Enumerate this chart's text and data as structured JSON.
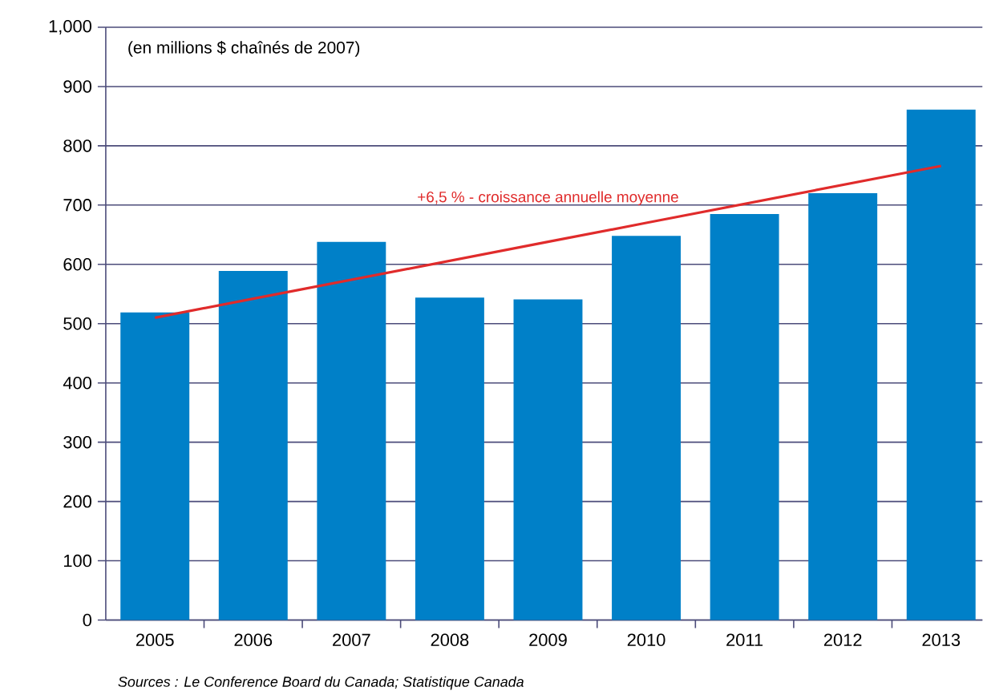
{
  "chart_data": {
    "type": "bar",
    "subtitle": "(en millions $ chaînés de 2007)",
    "categories": [
      "2005",
      "2006",
      "2007",
      "2008",
      "2009",
      "2010",
      "2011",
      "2012",
      "2013"
    ],
    "series": [
      {
        "color": "#0080c8",
        "values": [
          519,
          589,
          638,
          544,
          541,
          648,
          685,
          720,
          861
        ]
      },
      {
        "type": "line",
        "color": "#e02b2b",
        "values": [
          510,
          542,
          574,
          606,
          638,
          670,
          702,
          734,
          766
        ]
      }
    ],
    "annotations": [
      "+6,5 % - croissance annuelle moyenne",
      "Sources : Le Conference Board du Canada; Statistique Canada"
    ],
    "ylim": [
      0,
      1000
    ],
    "yticks": [
      0,
      100,
      200,
      300,
      400,
      500,
      600,
      700,
      800,
      900,
      {
        "value": 1000,
        "label": "1,000"
      }
    ],
    "grid": "y"
  }
}
